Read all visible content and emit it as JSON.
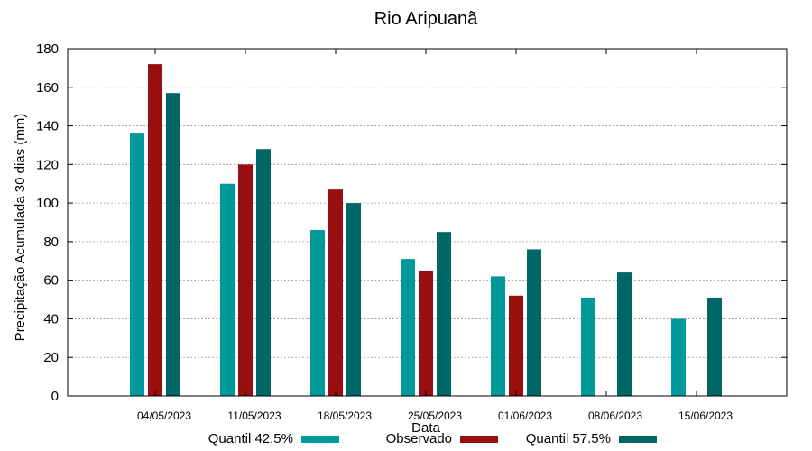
{
  "chart_data": {
    "type": "bar",
    "title": "Rio Aripuanã",
    "xlabel": "Data",
    "ylabel": "Precipitação Acumulada 30 dias (mm)",
    "ylim": [
      0,
      180
    ],
    "yticks": [
      0,
      20,
      40,
      60,
      80,
      100,
      120,
      140,
      160,
      180
    ],
    "grid": true,
    "legend_position": "bottom",
    "categories": [
      "04/05/2023",
      "11/05/2023",
      "18/05/2023",
      "25/05/2023",
      "01/06/2023",
      "08/06/2023",
      "15/06/2023"
    ],
    "series": [
      {
        "name": "Quantil 42.5%",
        "color": "#009999",
        "values": [
          136,
          110,
          86,
          71,
          62,
          51,
          40
        ]
      },
      {
        "name": "Observado",
        "color": "#990f0f",
        "values": [
          172,
          120,
          107,
          65,
          52,
          null,
          null
        ]
      },
      {
        "name": "Quantil 57.5%",
        "color": "#006666",
        "values": [
          157,
          128,
          100,
          85,
          76,
          64,
          51
        ]
      }
    ]
  }
}
